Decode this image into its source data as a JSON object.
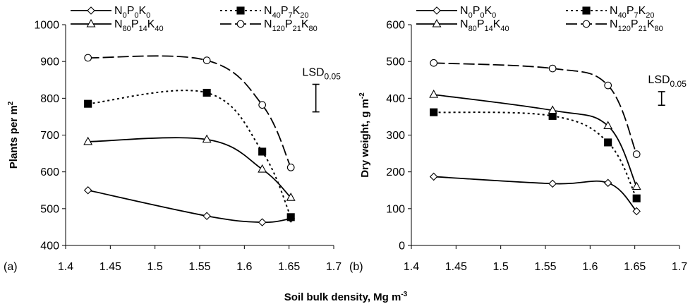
{
  "figure": {
    "shared_xlabel": "Soil bulk density, Mg m",
    "shared_xlabel_sup": "-3"
  },
  "chart_data": [
    {
      "type": "line",
      "panel_label": "(a)",
      "ylabel": "Plants per m",
      "ylabel_sup": "2",
      "xlim": [
        1.4,
        1.7
      ],
      "ylim": [
        400,
        1000
      ],
      "x_ticks": [
        1.4,
        1.45,
        1.5,
        1.55,
        1.6,
        1.65,
        1.7
      ],
      "x_tick_labels": [
        "1.4",
        "1.45",
        "1.5",
        "1.55",
        "1.6",
        "1.65",
        "1.7"
      ],
      "y_ticks": [
        400,
        500,
        600,
        700,
        800,
        900,
        1000
      ],
      "y_tick_labels": [
        "400",
        "500",
        "600",
        "700",
        "800",
        "900",
        "1000"
      ],
      "x": [
        1.425,
        1.558,
        1.62,
        1.652
      ],
      "grid": false,
      "legend_position": "top",
      "lsd": {
        "label": "LSD",
        "sub": "0.05",
        "x": 1.68,
        "low": 763,
        "high": 838
      },
      "series": [
        {
          "name": "N0P0K0",
          "values": [
            550,
            480,
            463,
            473
          ]
        },
        {
          "name": "N40P7K20",
          "values": [
            785,
            815,
            655,
            477
          ]
        },
        {
          "name": "N80P14K40",
          "values": [
            682,
            688,
            607,
            530
          ]
        },
        {
          "name": "N120P21K80",
          "values": [
            910,
            903,
            782,
            612
          ]
        }
      ]
    },
    {
      "type": "line",
      "panel_label": "(b)",
      "ylabel": "Dry weight, g m",
      "ylabel_sup": "-2",
      "xlim": [
        1.4,
        1.7
      ],
      "ylim": [
        0,
        600
      ],
      "x_ticks": [
        1.4,
        1.45,
        1.5,
        1.55,
        1.6,
        1.65,
        1.7
      ],
      "x_tick_labels": [
        "1.4",
        "1.45",
        "1.5",
        "1.55",
        "1.6",
        "1.65",
        "1.7"
      ],
      "y_ticks": [
        0,
        100,
        200,
        300,
        400,
        500,
        600
      ],
      "y_tick_labels": [
        "0",
        "100",
        "200",
        "300",
        "400",
        "500",
        "600"
      ],
      "x": [
        1.425,
        1.558,
        1.62,
        1.652
      ],
      "grid": false,
      "legend_position": "top",
      "lsd": {
        "label": "LSD",
        "sub": "0.05",
        "x": 1.68,
        "low": 381,
        "high": 418
      },
      "series": [
        {
          "name": "N0P0K0",
          "values": [
            187,
            168,
            170,
            93
          ]
        },
        {
          "name": "N40P7K20",
          "values": [
            362,
            352,
            280,
            128
          ]
        },
        {
          "name": "N80P14K40",
          "values": [
            410,
            367,
            325,
            160
          ]
        },
        {
          "name": "N120P21K80",
          "values": [
            496,
            481,
            435,
            248
          ]
        }
      ]
    }
  ],
  "legend": [
    {
      "key": "N0P0K0",
      "parts": [
        [
          "N",
          ""
        ],
        [
          "P",
          "0"
        ],
        [
          "K",
          "0"
        ]
      ],
      "lead_sub": "0",
      "marker": "diamond",
      "dash": "solid"
    },
    {
      "key": "N40P7K20",
      "parts": [
        [
          "N",
          ""
        ],
        [
          "P",
          "7"
        ],
        [
          "K",
          "20"
        ]
      ],
      "lead_sub": "40",
      "marker": "square",
      "dash": "dot"
    },
    {
      "key": "N80P14K40",
      "parts": [
        [
          "N",
          ""
        ],
        [
          "P",
          "14"
        ],
        [
          "K",
          "40"
        ]
      ],
      "lead_sub": "80",
      "marker": "triangle",
      "dash": "solid"
    },
    {
      "key": "N120P21K80",
      "parts": [
        [
          "N",
          ""
        ],
        [
          "P",
          "21"
        ],
        [
          "K",
          "80"
        ]
      ],
      "lead_sub": "120",
      "marker": "circle",
      "dash": "longdash"
    }
  ]
}
